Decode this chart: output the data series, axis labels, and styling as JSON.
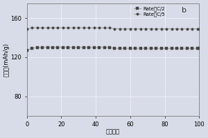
{
  "title_label": "b",
  "xlabel": "循环次数",
  "ylabel": "比容量(mAh/g)",
  "xlim": [
    0,
    100
  ],
  "ylim": [
    60,
    175
  ],
  "yticks": [
    80,
    120,
    160
  ],
  "xticks": [
    0,
    20,
    40,
    60,
    80,
    100
  ],
  "legend_entries": [
    "Rate：C/2",
    "Rate：C/5"
  ],
  "c2_x": [
    0,
    3,
    6,
    9,
    12,
    15,
    18,
    21,
    24,
    27,
    30,
    33,
    36,
    39,
    42,
    45,
    48,
    51,
    54,
    57,
    60,
    63,
    66,
    69,
    72,
    75,
    78,
    81,
    84,
    87,
    90,
    93,
    96,
    99,
    100
  ],
  "c2_y": [
    127,
    129,
    130,
    130,
    130,
    130,
    130,
    130,
    130,
    130,
    130,
    130,
    130,
    130,
    130,
    130,
    130,
    129,
    129,
    129,
    129,
    129,
    129,
    129,
    129,
    129,
    129,
    129,
    129,
    129,
    129,
    129,
    129,
    129,
    129
  ],
  "c5_x": [
    0,
    3,
    6,
    9,
    12,
    15,
    18,
    21,
    24,
    27,
    30,
    33,
    36,
    39,
    42,
    45,
    48,
    51,
    54,
    57,
    60,
    63,
    66,
    69,
    72,
    75,
    78,
    81,
    84,
    87,
    90,
    93,
    96,
    99,
    100
  ],
  "c5_y": [
    149,
    150,
    150,
    150,
    150,
    150,
    150,
    150,
    150,
    150,
    150,
    150,
    150,
    150,
    150,
    150,
    150,
    149,
    149,
    149,
    149,
    149,
    149,
    149,
    149,
    149,
    149,
    149,
    149,
    149,
    149,
    149,
    149,
    149,
    149
  ],
  "line_color": "#999999",
  "marker_color_sq": "#444444",
  "marker_color_ci": "#444444",
  "bg_color": "#d8dce8",
  "grid_color": "#f0f0f8",
  "font_size": 6,
  "tick_fontsize": 6,
  "legend_fontsize": 5
}
